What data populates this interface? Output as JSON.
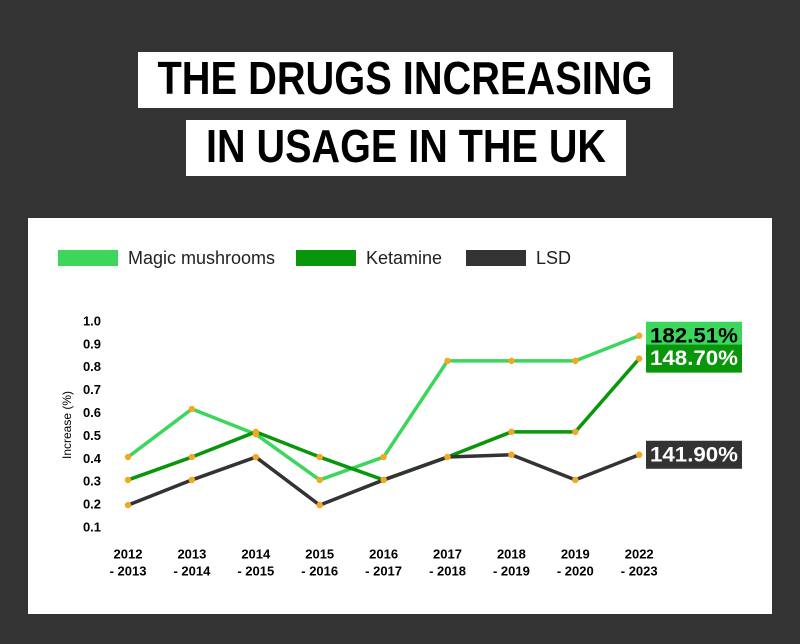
{
  "chart_data": {
    "type": "line",
    "title_lines": [
      "THE DRUGS INCREASING",
      "IN USAGE IN THE UK"
    ],
    "y_label": "Increase (%)",
    "categories": [
      [
        "2012",
        "- 2013"
      ],
      [
        "2013",
        "- 2014"
      ],
      [
        "2014",
        "- 2015"
      ],
      [
        "2015",
        "- 2016"
      ],
      [
        "2016",
        "- 2017"
      ],
      [
        "2017",
        "- 2018"
      ],
      [
        "2018",
        "- 2019"
      ],
      [
        "2019",
        "- 2020"
      ],
      [
        "2022",
        "- 2023"
      ]
    ],
    "series": [
      {
        "name": "Magic mushrooms",
        "color": "#3dd65c",
        "values": [
          0.41,
          0.62,
          0.51,
          0.31,
          0.41,
          0.83,
          0.83,
          0.83,
          0.94
        ],
        "end_label": "182.51%"
      },
      {
        "name": "Ketamine",
        "color": "#0a960a",
        "values": [
          0.31,
          0.41,
          0.52,
          0.41,
          0.31,
          0.41,
          0.52,
          0.52,
          0.84
        ],
        "end_label": "148.70%"
      },
      {
        "name": "LSD",
        "color": "#333333",
        "values": [
          0.2,
          0.31,
          0.41,
          0.2,
          0.31,
          0.41,
          0.42,
          0.31,
          0.42
        ],
        "end_label": "141.90%"
      }
    ],
    "marker_color": "#f5a623",
    "ylim": [
      0.1,
      1.0
    ],
    "yticks": [
      0.1,
      0.2,
      0.3,
      0.4,
      0.5,
      0.6,
      0.7,
      0.8,
      0.9,
      {
        "value": 1.0,
        "label": "1.0"
      }
    ]
  }
}
